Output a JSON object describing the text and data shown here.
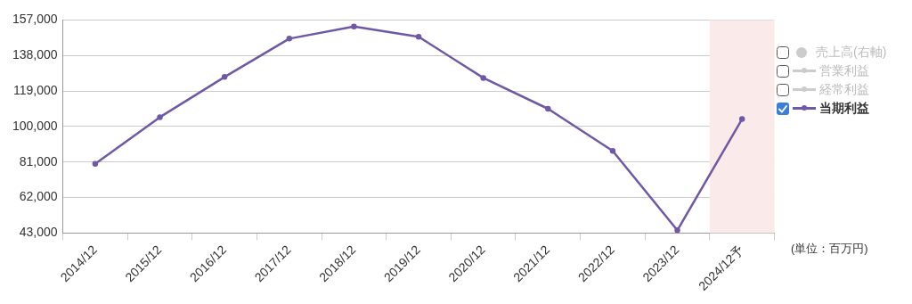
{
  "chart_data": {
    "type": "line",
    "categories": [
      "2014/12",
      "2015/12",
      "2016/12",
      "2017/12",
      "2018/12",
      "2019/12",
      "2020/12",
      "2021/12",
      "2022/12",
      "2023/12",
      "2024/12予"
    ],
    "series": [
      {
        "name": "売上高(右軸)",
        "type": "bar",
        "color": "#cccccc",
        "values": [
          null,
          null,
          null,
          null,
          null,
          null,
          null,
          null,
          null,
          null,
          null
        ]
      },
      {
        "name": "営業利益",
        "color": "#cccccc",
        "values": [
          null,
          null,
          null,
          null,
          null,
          null,
          null,
          null,
          null,
          null,
          null
        ]
      },
      {
        "name": "経常利益",
        "color": "#cccccc",
        "values": [
          null,
          null,
          null,
          null,
          null,
          null,
          null,
          null,
          null,
          null,
          null
        ]
      },
      {
        "name": "当期利益",
        "color": "#6f58a6",
        "values": [
          80000,
          105000,
          126500,
          147000,
          153500,
          148000,
          126000,
          109500,
          87000,
          44500,
          104000
        ]
      }
    ],
    "ylim": [
      43000,
      157000
    ],
    "yticks": [
      {
        "value": 43000,
        "label": "43,000"
      },
      {
        "value": 62000,
        "label": "62,000"
      },
      {
        "value": 81000,
        "label": "81,000"
      },
      {
        "value": 100000,
        "label": "100,000"
      },
      {
        "value": 119000,
        "label": "119,000"
      },
      {
        "value": 138000,
        "label": "138,000"
      },
      {
        "value": 157000,
        "label": "157,000"
      }
    ],
    "grid": "y",
    "legend": "right",
    "marker": "circle",
    "line_style": "solid",
    "bands": [
      {
        "axis": "x",
        "from": "2024/12予",
        "to": "2024/12予",
        "color": "#fbeaea"
      }
    ],
    "annotations": [
      "(単位：百万円)"
    ]
  }
}
